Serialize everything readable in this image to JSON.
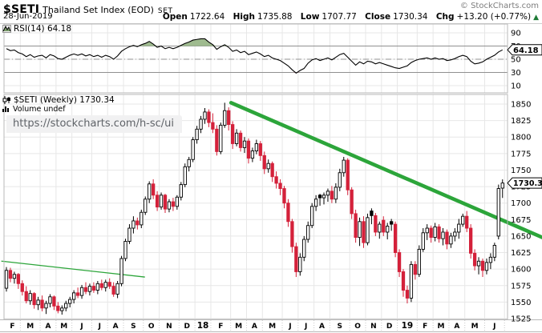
{
  "header": {
    "symbol": "$SETI",
    "name": "Thailand Set Index (EOD)",
    "exchange": "SET",
    "copyright": "© StockCharts.com",
    "date": "28-Jun-2019",
    "quote": {
      "open_label": "Open",
      "open": "1722.64",
      "high_label": "High",
      "high": "1735.88",
      "low_label": "Low",
      "low": "1707.77",
      "close_label": "Close",
      "close": "1730.34",
      "chg_label": "Chg",
      "chg": "+13.20 (+0.77%)",
      "up_triangle": "▲"
    }
  },
  "legends": {
    "rsi": "RSI(14) 64.18",
    "main": "$SETI (Weekly) 1730.34",
    "volume": "Volume undef"
  },
  "url_tooltip": "https://stockcharts.com/h-sc/ui",
  "chart_data": {
    "type": "candlestick",
    "period": "weekly",
    "title": "$SETI Thailand Set Index (EOD) Weekly with RSI(14)",
    "colors": {
      "up_candle": "#ffffff",
      "up_border": "#000000",
      "down_candle": "#d4213a",
      "black_candle": "#000000",
      "trendline": "#2ca53a",
      "rsi_line": "#000000",
      "rsi_overbought_fill": "#9fbb8f",
      "rsi_oversold_fill": "#c79ba2",
      "grid": "#e7e7e7",
      "panel_border": "#b8b8b8",
      "rsi_band_line": "#909090"
    },
    "y_axis": {
      "min": 1525,
      "max": 1850,
      "step": 25
    },
    "rsi_axis": {
      "ticks": [
        90,
        70,
        50,
        30,
        10
      ],
      "overbought": 70,
      "oversold": 30,
      "mid": 50
    },
    "price_current": 1730.34,
    "price_label": "1730.3",
    "rsi_current": 64.18,
    "rsi_label": "64.18",
    "months": [
      {
        "label": "F",
        "weeks": 4,
        "bold": false
      },
      {
        "label": "M",
        "weeks": 5,
        "bold": false
      },
      {
        "label": "A",
        "weeks": 4,
        "bold": false
      },
      {
        "label": "M",
        "weeks": 4,
        "bold": false
      },
      {
        "label": "J",
        "weeks": 5,
        "bold": false
      },
      {
        "label": "J",
        "weeks": 4,
        "bold": false
      },
      {
        "label": "A",
        "weeks": 4,
        "bold": false
      },
      {
        "label": "S",
        "weeks": 5,
        "bold": false
      },
      {
        "label": "O",
        "weeks": 4,
        "bold": false
      },
      {
        "label": "N",
        "weeks": 5,
        "bold": false
      },
      {
        "label": "D",
        "weeks": 4,
        "bold": false
      },
      {
        "label": "18",
        "weeks": 4,
        "bold": true
      },
      {
        "label": "F",
        "weeks": 5,
        "bold": false
      },
      {
        "label": "M",
        "weeks": 4,
        "bold": false
      },
      {
        "label": "A",
        "weeks": 4,
        "bold": false
      },
      {
        "label": "M",
        "weeks": 5,
        "bold": false
      },
      {
        "label": "J",
        "weeks": 4,
        "bold": false
      },
      {
        "label": "J",
        "weeks": 4,
        "bold": false
      },
      {
        "label": "A",
        "weeks": 4,
        "bold": false
      },
      {
        "label": "S",
        "weeks": 5,
        "bold": false
      },
      {
        "label": "O",
        "weeks": 4,
        "bold": false
      },
      {
        "label": "N",
        "weeks": 4,
        "bold": false
      },
      {
        "label": "D",
        "weeks": 4,
        "bold": false
      },
      {
        "label": "19",
        "weeks": 5,
        "bold": true
      },
      {
        "label": "F",
        "weeks": 4,
        "bold": false
      },
      {
        "label": "M",
        "weeks": 4,
        "bold": false
      },
      {
        "label": "A",
        "weeks": 4,
        "bold": false
      },
      {
        "label": "M",
        "weeks": 5,
        "bold": false
      },
      {
        "label": "J",
        "weeks": 5,
        "bold": false
      }
    ],
    "ohlc": [
      [
        1571,
        1603,
        1566,
        1598
      ],
      [
        1598,
        1602,
        1580,
        1586
      ],
      [
        1586,
        1596,
        1578,
        1592
      ],
      [
        1592,
        1594,
        1570,
        1578
      ],
      [
        1578,
        1583,
        1560,
        1566
      ],
      [
        1566,
        1574,
        1548,
        1552
      ],
      [
        1552,
        1568,
        1546,
        1563
      ],
      [
        1563,
        1565,
        1540,
        1546
      ],
      [
        1546,
        1558,
        1538,
        1553
      ],
      [
        1553,
        1560,
        1536,
        1541
      ],
      [
        1541,
        1552,
        1532,
        1548
      ],
      [
        1548,
        1562,
        1542,
        1558
      ],
      [
        1558,
        1560,
        1538,
        1544
      ],
      [
        1544,
        1550,
        1533,
        1537
      ],
      [
        1537,
        1545,
        1531,
        1541
      ],
      [
        1541,
        1552,
        1536,
        1548
      ],
      [
        1548,
        1558,
        1542,
        1554
      ],
      [
        1554,
        1568,
        1548,
        1564
      ],
      [
        1564,
        1572,
        1556,
        1560
      ],
      [
        1560,
        1576,
        1555,
        1572
      ],
      [
        1572,
        1580,
        1562,
        1566
      ],
      [
        1566,
        1578,
        1560,
        1574
      ],
      [
        1574,
        1580,
        1564,
        1568
      ],
      [
        1568,
        1582,
        1562,
        1578
      ],
      [
        1578,
        1584,
        1568,
        1572
      ],
      [
        1572,
        1584,
        1566,
        1580
      ],
      [
        1580,
        1586,
        1570,
        1574
      ],
      [
        1574,
        1580,
        1558,
        1562
      ],
      [
        1562,
        1582,
        1556,
        1578
      ],
      [
        1578,
        1620,
        1574,
        1616
      ],
      [
        1616,
        1646,
        1612,
        1642
      ],
      [
        1642,
        1668,
        1638,
        1662
      ],
      [
        1662,
        1680,
        1654,
        1673
      ],
      [
        1673,
        1678,
        1660,
        1667
      ],
      [
        1667,
        1690,
        1662,
        1686
      ],
      [
        1686,
        1710,
        1682,
        1706
      ],
      [
        1706,
        1733,
        1700,
        1729
      ],
      [
        1729,
        1736,
        1706,
        1712
      ],
      [
        1712,
        1718,
        1688,
        1694
      ],
      [
        1694,
        1716,
        1690,
        1712
      ],
      [
        1712,
        1714,
        1685,
        1691
      ],
      [
        1691,
        1706,
        1686,
        1702
      ],
      [
        1702,
        1708,
        1688,
        1695
      ],
      [
        1695,
        1712,
        1690,
        1709
      ],
      [
        1709,
        1732,
        1704,
        1728
      ],
      [
        1728,
        1760,
        1724,
        1755
      ],
      [
        1755,
        1770,
        1748,
        1766
      ],
      [
        1766,
        1800,
        1762,
        1796
      ],
      [
        1796,
        1817,
        1790,
        1812
      ],
      [
        1812,
        1832,
        1806,
        1827
      ],
      [
        1827,
        1844,
        1820,
        1838
      ],
      [
        1838,
        1842,
        1815,
        1822
      ],
      [
        1822,
        1836,
        1806,
        1812
      ],
      [
        1812,
        1818,
        1772,
        1778
      ],
      [
        1778,
        1822,
        1774,
        1818
      ],
      [
        1818,
        1852,
        1814,
        1840
      ],
      [
        1840,
        1845,
        1810,
        1819
      ],
      [
        1819,
        1824,
        1782,
        1790
      ],
      [
        1790,
        1812,
        1786,
        1806
      ],
      [
        1806,
        1810,
        1778,
        1784
      ],
      [
        1784,
        1800,
        1776,
        1794
      ],
      [
        1794,
        1798,
        1760,
        1768
      ],
      [
        1768,
        1784,
        1762,
        1779
      ],
      [
        1779,
        1796,
        1774,
        1790
      ],
      [
        1790,
        1794,
        1764,
        1772
      ],
      [
        1772,
        1778,
        1744,
        1752
      ],
      [
        1752,
        1766,
        1746,
        1760
      ],
      [
        1760,
        1763,
        1732,
        1740
      ],
      [
        1740,
        1748,
        1722,
        1730
      ],
      [
        1730,
        1736,
        1712,
        1722
      ],
      [
        1722,
        1726,
        1692,
        1700
      ],
      [
        1700,
        1706,
        1664,
        1672
      ],
      [
        1672,
        1676,
        1625,
        1634
      ],
      [
        1634,
        1640,
        1588,
        1596
      ],
      [
        1596,
        1624,
        1590,
        1618
      ],
      [
        1618,
        1650,
        1612,
        1645
      ],
      [
        1645,
        1672,
        1640,
        1666
      ],
      [
        1666,
        1700,
        1662,
        1695
      ],
      [
        1695,
        1712,
        1688,
        1706
      ],
      [
        1712,
        1714,
        1696,
        1708
      ],
      [
        1708,
        1716,
        1698,
        1712
      ],
      [
        1712,
        1722,
        1702,
        1718
      ],
      [
        1718,
        1726,
        1700,
        1706
      ],
      [
        1706,
        1730,
        1700,
        1724
      ],
      [
        1724,
        1752,
        1718,
        1746
      ],
      [
        1746,
        1770,
        1740,
        1765
      ],
      [
        1765,
        1768,
        1712,
        1720
      ],
      [
        1720,
        1724,
        1676,
        1684
      ],
      [
        1684,
        1690,
        1640,
        1648
      ],
      [
        1648,
        1678,
        1635,
        1672
      ],
      [
        1672,
        1680,
        1632,
        1640
      ],
      [
        1640,
        1684,
        1636,
        1678
      ],
      [
        1688,
        1692,
        1668,
        1681
      ],
      [
        1681,
        1685,
        1650,
        1656
      ],
      [
        1656,
        1672,
        1646,
        1668
      ],
      [
        1674,
        1680,
        1650,
        1656
      ],
      [
        1656,
        1670,
        1645,
        1665
      ],
      [
        1672,
        1676,
        1658,
        1668
      ],
      [
        1668,
        1672,
        1618,
        1625
      ],
      [
        1625,
        1630,
        1588,
        1596
      ],
      [
        1596,
        1600,
        1558,
        1568
      ],
      [
        1568,
        1575,
        1548,
        1556
      ],
      [
        1556,
        1612,
        1550,
        1607
      ],
      [
        1607,
        1612,
        1584,
        1592
      ],
      [
        1592,
        1636,
        1588,
        1630
      ],
      [
        1630,
        1662,
        1626,
        1655
      ],
      [
        1655,
        1668,
        1644,
        1662
      ],
      [
        1662,
        1666,
        1640,
        1648
      ],
      [
        1648,
        1670,
        1642,
        1664
      ],
      [
        1664,
        1668,
        1640,
        1646
      ],
      [
        1646,
        1662,
        1636,
        1656
      ],
      [
        1656,
        1660,
        1630,
        1638
      ],
      [
        1638,
        1655,
        1632,
        1650
      ],
      [
        1650,
        1662,
        1642,
        1656
      ],
      [
        1656,
        1676,
        1646,
        1668
      ],
      [
        1668,
        1684,
        1664,
        1680
      ],
      [
        1680,
        1688,
        1656,
        1662
      ],
      [
        1662,
        1668,
        1616,
        1624
      ],
      [
        1624,
        1630,
        1598,
        1605
      ],
      [
        1605,
        1618,
        1592,
        1612
      ],
      [
        1612,
        1616,
        1588,
        1598
      ],
      [
        1598,
        1616,
        1592,
        1610
      ],
      [
        1610,
        1624,
        1600,
        1618
      ],
      [
        1618,
        1640,
        1612,
        1636
      ],
      [
        1650,
        1728,
        1645,
        1722
      ],
      [
        1722.64,
        1735.88,
        1707.77,
        1730.34
      ]
    ],
    "rsi": [
      66,
      63,
      64,
      60,
      58,
      54,
      57,
      53,
      55,
      56,
      52,
      57,
      55,
      51,
      50,
      53,
      56,
      58,
      56,
      58,
      55,
      57,
      54,
      56,
      53,
      56,
      54,
      50,
      55,
      62,
      66,
      69,
      71,
      69,
      72,
      74,
      77,
      73,
      68,
      70,
      66,
      68,
      66,
      68,
      71,
      74,
      76,
      79,
      80,
      81,
      81,
      76,
      72,
      65,
      69,
      72,
      68,
      62,
      64,
      60,
      62,
      57,
      59,
      61,
      58,
      54,
      56,
      52,
      50,
      48,
      44,
      40,
      34,
      29,
      33,
      36,
      44,
      49,
      51,
      48,
      50,
      52,
      49,
      53,
      57,
      59,
      53,
      47,
      41,
      46,
      43,
      47,
      46,
      43,
      45,
      43,
      41,
      39,
      37,
      36,
      38,
      40,
      45,
      48,
      50,
      51,
      52,
      50,
      52,
      50,
      51,
      48,
      49,
      51,
      54,
      56,
      54,
      47,
      43,
      44,
      46,
      50,
      53,
      56,
      61,
      64.18
    ],
    "trendlines": [
      {
        "name": "major-downtrend",
        "w1": 56.6,
        "p1": 1852,
        "w2": 135.0,
        "p2": 1648,
        "width": 4.6
      },
      {
        "name": "minor-support",
        "w1": -1.2,
        "p1": 1612,
        "w2": 34.8,
        "p2": 1588,
        "width": 1.3
      }
    ]
  }
}
